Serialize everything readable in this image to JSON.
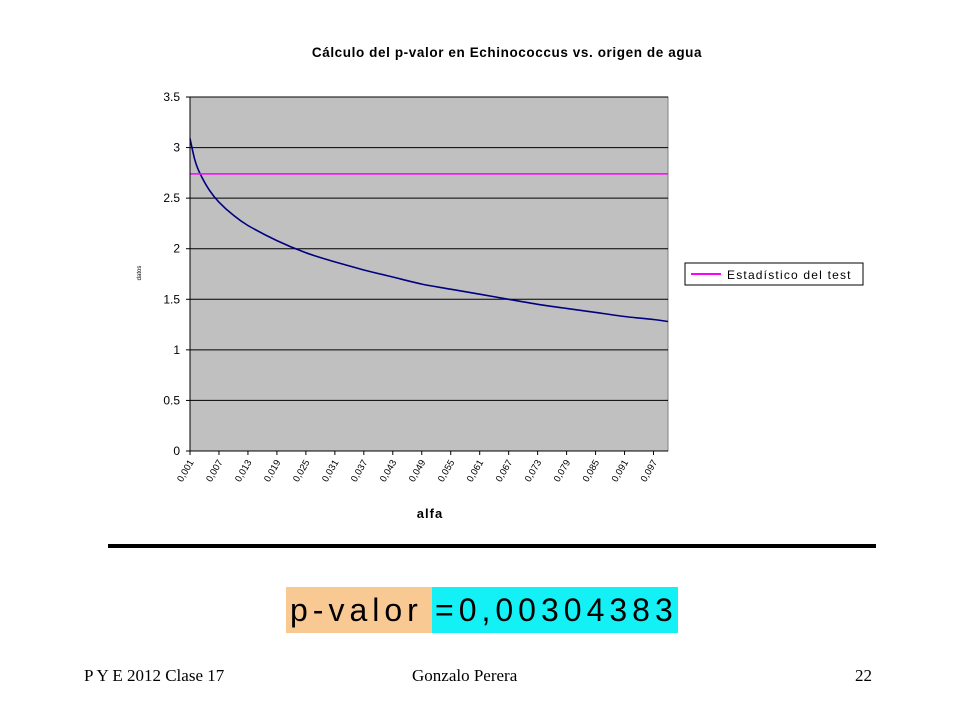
{
  "chart_data": {
    "type": "line",
    "title": "Cálculo del p-valor en Echinococcus vs. origen de agua",
    "xlabel": "alfa",
    "ylabel": "datos",
    "ylim": [
      0,
      3.5
    ],
    "y_ticks": [
      "0",
      "0.5",
      "1",
      "1.5",
      "2",
      "2.5",
      "3",
      "3.5"
    ],
    "x_ticks": [
      "0,001",
      "0,007",
      "0,013",
      "0,019",
      "0,025",
      "0,031",
      "0,037",
      "0,043",
      "0,049",
      "0,055",
      "0,061",
      "0,067",
      "0,073",
      "0,079",
      "0,085",
      "0,091",
      "0,097"
    ],
    "x_range": [
      0.001,
      0.1
    ],
    "grid": true,
    "plot_background": "#c0c0c0",
    "legend_position": "right",
    "series": [
      {
        "name": "",
        "color": "#000080",
        "x": [
          0.001,
          0.002,
          0.003,
          0.005,
          0.007,
          0.01,
          0.013,
          0.019,
          0.025,
          0.031,
          0.037,
          0.043,
          0.049,
          0.055,
          0.061,
          0.067,
          0.073,
          0.079,
          0.085,
          0.091,
          0.097,
          0.1
        ],
        "y": [
          3.09,
          2.88,
          2.75,
          2.58,
          2.46,
          2.33,
          2.23,
          2.08,
          1.96,
          1.87,
          1.79,
          1.72,
          1.65,
          1.6,
          1.55,
          1.5,
          1.45,
          1.41,
          1.37,
          1.33,
          1.3,
          1.28
        ]
      },
      {
        "name": "Estadístico del test",
        "color": "#ff00ff",
        "x": [
          0.001,
          0.1
        ],
        "y": [
          2.74,
          2.74
        ]
      }
    ]
  },
  "pvalue": {
    "label": "p-valor",
    "value": "=0,00304383"
  },
  "footer": {
    "left": "P Y E 2012 Clase 17",
    "center": "Gonzalo Perera",
    "page": "22"
  }
}
